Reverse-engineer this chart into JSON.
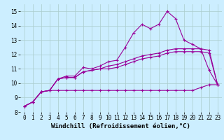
{
  "background_color": "#cceeff",
  "grid_color": "#aacccc",
  "line_color": "#990099",
  "marker": "+",
  "markersize": 3,
  "linewidth": 0.8,
  "xlabel": "Windchill (Refroidissement éolien,°C)",
  "xlabel_fontsize": 6.5,
  "tick_fontsize": 5.5,
  "ylim": [
    8.0,
    15.5
  ],
  "xlim": [
    -0.5,
    23.5
  ],
  "yticks": [
    8,
    9,
    10,
    11,
    12,
    13,
    14,
    15
  ],
  "xticks": [
    0,
    1,
    2,
    3,
    4,
    5,
    6,
    7,
    8,
    9,
    10,
    11,
    12,
    13,
    14,
    15,
    16,
    17,
    18,
    19,
    20,
    21,
    22,
    23
  ],
  "series": [
    [
      8.4,
      8.7,
      9.4,
      9.5,
      10.3,
      10.5,
      10.5,
      11.1,
      11.0,
      11.2,
      11.5,
      11.6,
      12.5,
      13.5,
      14.1,
      13.8,
      14.1,
      15.0,
      14.5,
      13.0,
      12.7,
      12.4,
      10.9,
      9.9
    ],
    [
      8.4,
      8.7,
      9.4,
      9.5,
      10.3,
      10.4,
      10.4,
      10.8,
      10.9,
      11.0,
      11.2,
      11.3,
      11.5,
      11.7,
      11.9,
      12.0,
      12.1,
      12.3,
      12.4,
      12.4,
      12.4,
      12.4,
      12.3,
      9.9
    ],
    [
      8.4,
      8.7,
      9.4,
      9.5,
      10.3,
      10.4,
      10.4,
      10.8,
      10.9,
      11.0,
      11.0,
      11.1,
      11.3,
      11.5,
      11.7,
      11.8,
      11.9,
      12.1,
      12.2,
      12.2,
      12.2,
      12.2,
      12.1,
      9.9
    ],
    [
      8.4,
      8.7,
      9.4,
      9.5,
      9.5,
      9.5,
      9.5,
      9.5,
      9.5,
      9.5,
      9.5,
      9.5,
      9.5,
      9.5,
      9.5,
      9.5,
      9.5,
      9.5,
      9.5,
      9.5,
      9.5,
      9.7,
      9.9,
      9.9
    ]
  ]
}
